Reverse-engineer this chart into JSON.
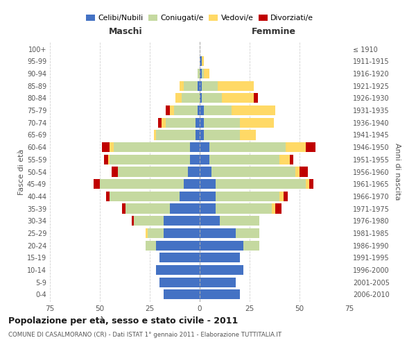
{
  "age_groups": [
    "0-4",
    "5-9",
    "10-14",
    "15-19",
    "20-24",
    "25-29",
    "30-34",
    "35-39",
    "40-44",
    "45-49",
    "50-54",
    "55-59",
    "60-64",
    "65-69",
    "70-74",
    "75-79",
    "80-84",
    "85-89",
    "90-94",
    "95-99",
    "100+"
  ],
  "birth_years": [
    "2006-2010",
    "2001-2005",
    "1996-2000",
    "1991-1995",
    "1986-1990",
    "1981-1985",
    "1976-1980",
    "1971-1975",
    "1966-1970",
    "1961-1965",
    "1956-1960",
    "1951-1955",
    "1946-1950",
    "1941-1945",
    "1936-1940",
    "1931-1935",
    "1926-1930",
    "1921-1925",
    "1916-1920",
    "1911-1915",
    "≤ 1910"
  ],
  "male_celibi": [
    18,
    20,
    22,
    20,
    22,
    18,
    18,
    15,
    10,
    8,
    6,
    5,
    5,
    2,
    2,
    1,
    0,
    1,
    0,
    0,
    0
  ],
  "male_coniugati": [
    0,
    0,
    0,
    0,
    5,
    8,
    15,
    22,
    35,
    42,
    35,
    40,
    38,
    20,
    15,
    12,
    9,
    7,
    1,
    0,
    0
  ],
  "male_vedovi": [
    0,
    0,
    0,
    0,
    0,
    1,
    0,
    0,
    0,
    0,
    0,
    1,
    2,
    1,
    2,
    2,
    3,
    2,
    0,
    0,
    0
  ],
  "male_divorziati": [
    0,
    0,
    0,
    0,
    0,
    0,
    1,
    2,
    2,
    3,
    3,
    2,
    4,
    0,
    2,
    2,
    0,
    0,
    0,
    0,
    0
  ],
  "female_nubili": [
    20,
    18,
    22,
    20,
    22,
    18,
    10,
    8,
    8,
    8,
    6,
    5,
    5,
    2,
    2,
    2,
    1,
    1,
    1,
    1,
    0
  ],
  "female_coniugate": [
    0,
    0,
    0,
    0,
    8,
    12,
    20,
    28,
    32,
    45,
    42,
    35,
    38,
    18,
    18,
    14,
    10,
    8,
    1,
    0,
    0
  ],
  "female_vedove": [
    0,
    0,
    0,
    0,
    0,
    0,
    0,
    2,
    2,
    2,
    2,
    5,
    10,
    8,
    17,
    22,
    16,
    18,
    3,
    1,
    0
  ],
  "female_divorziate": [
    0,
    0,
    0,
    0,
    0,
    0,
    0,
    3,
    2,
    2,
    4,
    2,
    5,
    0,
    0,
    0,
    2,
    0,
    0,
    0,
    0
  ],
  "colors": {
    "celibi_nubili": "#4472C4",
    "coniugati": "#C5D9A0",
    "vedovi": "#FFD966",
    "divorziati": "#C00000"
  },
  "title": "Popolazione per età, sesso e stato civile - 2011",
  "subtitle": "COMUNE DI CASALMORANO (CR) - Dati ISTAT 1° gennaio 2011 - Elaborazione TUTTITALIA.IT",
  "xlabel_left": "Maschi",
  "xlabel_right": "Femmine",
  "ylabel_left": "Fasce di età",
  "ylabel_right": "Anni di nascita",
  "xlim": 75,
  "legend_labels": [
    "Celibi/Nubili",
    "Coniugati/e",
    "Vedovi/e",
    "Divorziati/e"
  ],
  "background_color": "#ffffff",
  "grid_color": "#cccccc"
}
